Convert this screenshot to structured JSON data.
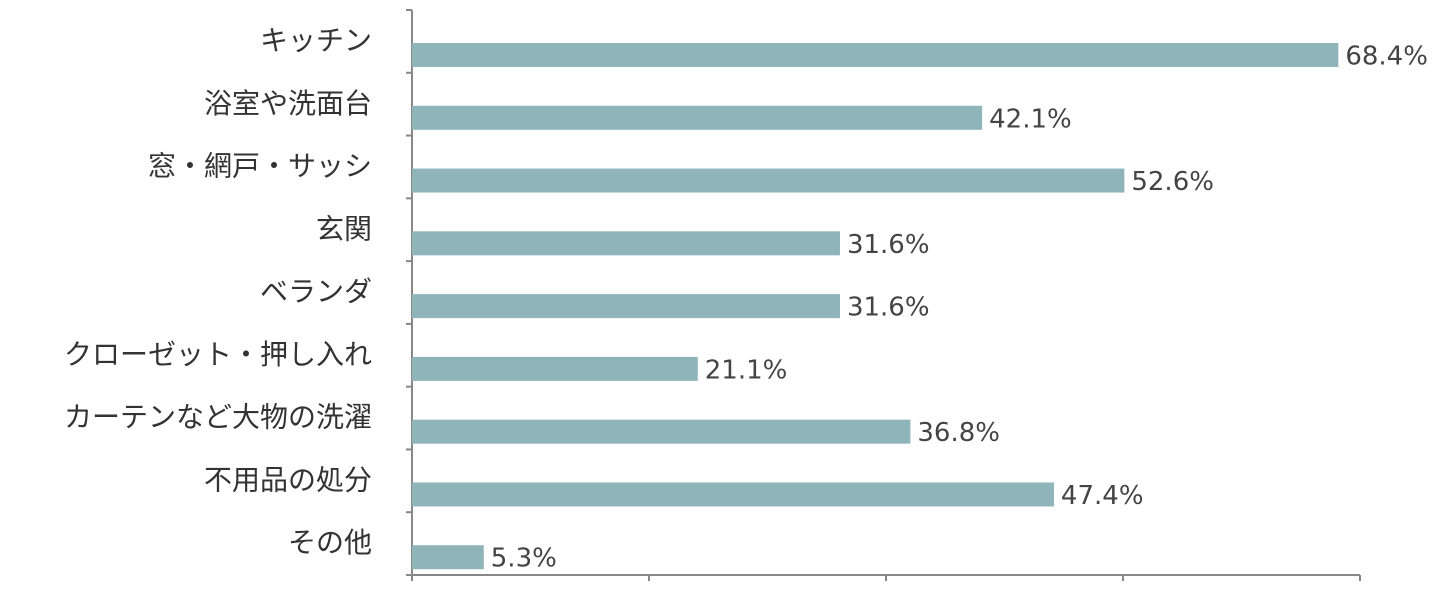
{
  "chart_data": {
    "type": "hbar",
    "categories": [
      "キッチン",
      "浴室や洗面台",
      "窓・網戸・サッシ",
      "玄関",
      "ベランダ",
      "クローゼット・押し入れ",
      "カーテンなど大物の洗濯",
      "不用品の処分",
      "その他"
    ],
    "values": [
      68.4,
      42.1,
      52.6,
      31.6,
      31.6,
      21.1,
      36.8,
      47.4,
      5.3
    ],
    "value_labels": [
      "68.4%",
      "42.1%",
      "52.6%",
      "31.6%",
      "31.6%",
      "21.1%",
      "36.8%",
      "47.4%",
      "5.3%"
    ],
    "color": "#8fb4b9",
    "xlim": [
      0,
      70
    ],
    "xticks": [
      0,
      17.5,
      35,
      52.5,
      70
    ]
  }
}
